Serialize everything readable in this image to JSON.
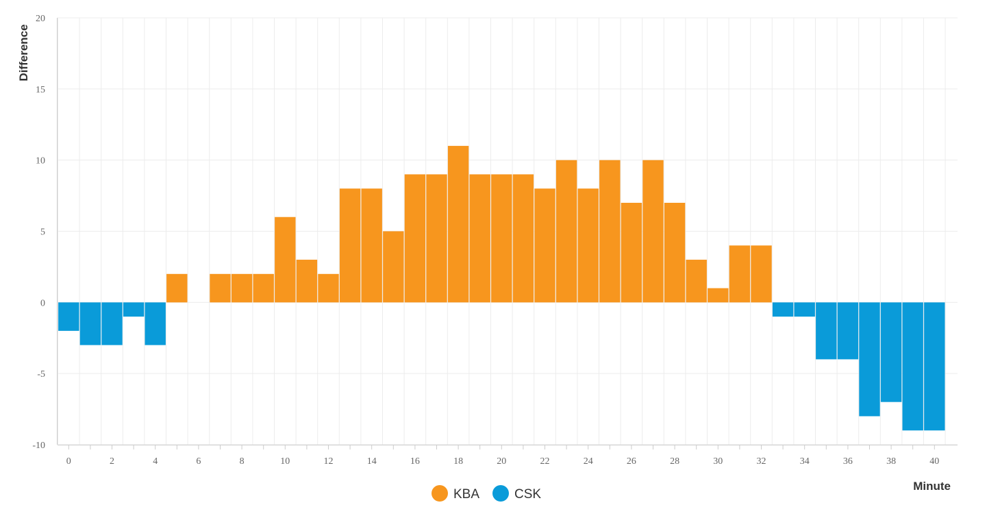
{
  "chart_data": {
    "type": "bar",
    "xlabel": "Minute",
    "ylabel": "Difference",
    "x": [
      0,
      1,
      2,
      3,
      4,
      5,
      6,
      7,
      8,
      9,
      10,
      11,
      12,
      13,
      14,
      15,
      16,
      17,
      18,
      19,
      20,
      21,
      22,
      23,
      24,
      25,
      26,
      27,
      28,
      29,
      30,
      31,
      32,
      33,
      34,
      35,
      36,
      37,
      38,
      39,
      40
    ],
    "values": [
      -2,
      -3,
      -3,
      -1,
      -3,
      2,
      0,
      2,
      2,
      2,
      6,
      3,
      2,
      8,
      8,
      5,
      9,
      9,
      11,
      9,
      9,
      9,
      8,
      10,
      8,
      10,
      7,
      10,
      7,
      3,
      1,
      4,
      4,
      -1,
      -1,
      -4,
      -4,
      -8,
      -7,
      -9,
      -9
    ],
    "ylim": [
      -10,
      20
    ],
    "yticks": [
      -10,
      -5,
      0,
      5,
      10,
      15,
      20
    ],
    "xticks": [
      0,
      2,
      4,
      6,
      8,
      10,
      12,
      14,
      16,
      18,
      20,
      22,
      24,
      26,
      28,
      30,
      32,
      34,
      36,
      38,
      40
    ],
    "grid": true,
    "legend_position": "bottom-center",
    "series": [
      {
        "name": "KBA",
        "color": "#f7961e",
        "rule": "positive"
      },
      {
        "name": "CSK",
        "color": "#0a9bd9",
        "rule": "negative"
      }
    ]
  }
}
